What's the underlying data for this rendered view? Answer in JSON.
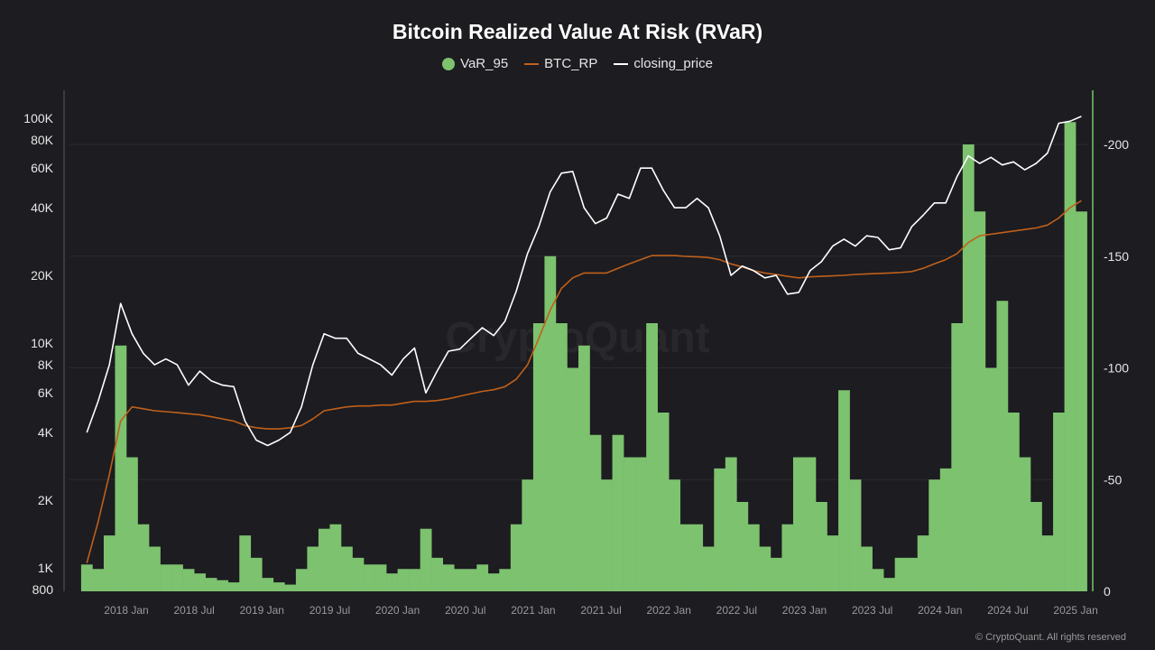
{
  "chart_data": {
    "type": "bar+line",
    "title": "Bitcoin Realized Value At Risk (RVaR)",
    "watermark": "CryptoQuant",
    "footer": "© CryptoQuant. All rights reserved",
    "legend_position": "top-center",
    "grid": true,
    "colors": {
      "VaR_95": "#7dc26e",
      "BTC_RP": "#c0601a",
      "closing_price": "#ffffff",
      "right_axis": "#5d9e55",
      "background": "#1c1c21"
    },
    "left_axis": {
      "scale": "log",
      "range": [
        800,
        120000
      ],
      "ticks": [
        800,
        1000,
        2000,
        4000,
        6000,
        8000,
        10000,
        20000,
        40000,
        60000,
        80000,
        100000
      ],
      "tick_labels": [
        "800",
        "1K",
        "2K",
        "4K",
        "6K",
        "8K",
        "10K",
        "20K",
        "40K",
        "60K",
        "80K",
        "100K"
      ]
    },
    "right_axis": {
      "scale": "linear",
      "range": [
        0,
        223
      ],
      "ticks": [
        0,
        50,
        100,
        150,
        200
      ],
      "tick_labels": [
        "0",
        "-50",
        "-100",
        "-150",
        "-200"
      ]
    },
    "x_tick_labels": [
      "2018 Jan",
      "2018 Jul",
      "2019 Jan",
      "2019 Jul",
      "2020 Jan",
      "2020 Jul",
      "2021 Jan",
      "2021 Jul",
      "2022 Jan",
      "2022 Jul",
      "2023 Jan",
      "2023 Jul",
      "2024 Jan",
      "2024 Jul",
      "2025 Jan"
    ],
    "x": [
      "2017-09",
      "2017-10",
      "2017-11",
      "2017-12",
      "2018-01",
      "2018-02",
      "2018-03",
      "2018-04",
      "2018-05",
      "2018-06",
      "2018-07",
      "2018-08",
      "2018-09",
      "2018-10",
      "2018-11",
      "2018-12",
      "2019-01",
      "2019-02",
      "2019-03",
      "2019-04",
      "2019-05",
      "2019-06",
      "2019-07",
      "2019-08",
      "2019-09",
      "2019-10",
      "2019-11",
      "2019-12",
      "2020-01",
      "2020-02",
      "2020-03",
      "2020-04",
      "2020-05",
      "2020-06",
      "2020-07",
      "2020-08",
      "2020-09",
      "2020-10",
      "2020-11",
      "2020-12",
      "2021-01",
      "2021-02",
      "2021-03",
      "2021-04",
      "2021-05",
      "2021-06",
      "2021-07",
      "2021-08",
      "2021-09",
      "2021-10",
      "2021-11",
      "2021-12",
      "2022-01",
      "2022-02",
      "2022-03",
      "2022-04",
      "2022-05",
      "2022-06",
      "2022-07",
      "2022-08",
      "2022-09",
      "2022-10",
      "2022-11",
      "2022-12",
      "2023-01",
      "2023-02",
      "2023-03",
      "2023-04",
      "2023-05",
      "2023-06",
      "2023-07",
      "2023-08",
      "2023-09",
      "2023-10",
      "2023-11",
      "2023-12",
      "2024-01",
      "2024-02",
      "2024-03",
      "2024-04",
      "2024-05",
      "2024-06",
      "2024-07",
      "2024-08",
      "2024-09",
      "2024-10",
      "2024-11",
      "2024-12",
      "2025-01"
    ],
    "series": [
      {
        "name": "VaR_95",
        "axis": "right",
        "type": "bar",
        "values": [
          12,
          10,
          25,
          110,
          60,
          30,
          20,
          12,
          12,
          10,
          8,
          6,
          5,
          4,
          25,
          15,
          6,
          4,
          3,
          10,
          20,
          28,
          30,
          20,
          15,
          12,
          12,
          8,
          10,
          10,
          28,
          15,
          12,
          10,
          10,
          12,
          8,
          10,
          30,
          50,
          120,
          150,
          120,
          100,
          110,
          70,
          50,
          70,
          60,
          60,
          120,
          80,
          50,
          30,
          30,
          20,
          55,
          60,
          40,
          30,
          20,
          15,
          30,
          60,
          60,
          40,
          25,
          90,
          50,
          20,
          10,
          6,
          15,
          15,
          25,
          50,
          55,
          120,
          200,
          170,
          100,
          130,
          80,
          60,
          40,
          25,
          80,
          210,
          170
        ]
      },
      {
        "name": "BTC_RP",
        "axis": "left",
        "type": "line",
        "values": [
          1050,
          1600,
          2600,
          4500,
          5200,
          5100,
          5000,
          4950,
          4900,
          4850,
          4800,
          4700,
          4600,
          4500,
          4300,
          4200,
          4150,
          4150,
          4200,
          4300,
          4600,
          5000,
          5100,
          5200,
          5250,
          5250,
          5300,
          5300,
          5400,
          5500,
          5500,
          5550,
          5650,
          5800,
          5950,
          6100,
          6200,
          6400,
          6900,
          8000,
          10500,
          14000,
          17500,
          19500,
          20500,
          20500,
          20500,
          21500,
          22500,
          23500,
          24500,
          24500,
          24500,
          24300,
          24200,
          24000,
          23500,
          22500,
          21800,
          21000,
          20500,
          20200,
          19800,
          19500,
          19700,
          19800,
          19900,
          20000,
          20200,
          20300,
          20400,
          20500,
          20600,
          20800,
          21500,
          22500,
          23500,
          25000,
          28000,
          30000,
          30500,
          31000,
          31500,
          32000,
          32500,
          33500,
          36000,
          40000,
          43000
        ]
      },
      {
        "name": "closing_price",
        "axis": "left",
        "type": "line",
        "values": [
          4000,
          5500,
          8000,
          15000,
          11000,
          9000,
          8000,
          8500,
          8000,
          6500,
          7500,
          6800,
          6500,
          6400,
          4500,
          3700,
          3500,
          3700,
          4000,
          5200,
          8000,
          11000,
          10500,
          10500,
          9000,
          8500,
          8000,
          7200,
          8500,
          9500,
          6000,
          7500,
          9200,
          9400,
          10500,
          11700,
          10800,
          12500,
          17000,
          25000,
          33000,
          47000,
          57000,
          58000,
          40000,
          34000,
          36000,
          46000,
          44000,
          60000,
          60000,
          48000,
          40000,
          40000,
          44000,
          40000,
          30000,
          20000,
          22000,
          21000,
          19500,
          20000,
          16500,
          16800,
          21000,
          23000,
          27000,
          29000,
          27000,
          30000,
          29500,
          26000,
          26500,
          33000,
          37000,
          42000,
          42000,
          55000,
          68000,
          63000,
          67000,
          62000,
          64000,
          59000,
          63000,
          70000,
          95000,
          97000,
          102000
        ]
      }
    ]
  }
}
